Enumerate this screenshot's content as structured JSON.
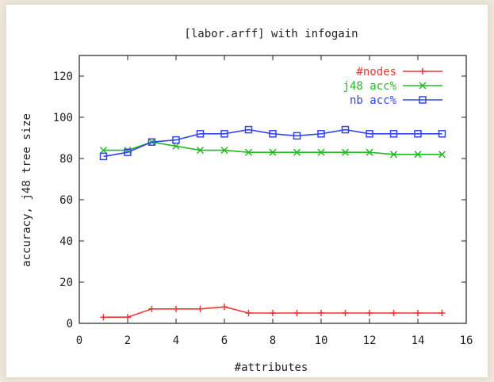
{
  "chart_data": {
    "type": "line",
    "title": "[labor.arff] with infogain",
    "xlabel": "#attributes",
    "ylabel": "accuracy, j48 tree size",
    "xlim": [
      0,
      16
    ],
    "ylim": [
      0,
      130
    ],
    "xticks": [
      0,
      2,
      4,
      6,
      8,
      10,
      12,
      14,
      16
    ],
    "yticks": [
      0,
      20,
      40,
      60,
      80,
      100,
      120
    ],
    "legend_position": "top-right",
    "x": [
      1,
      2,
      3,
      4,
      5,
      6,
      7,
      8,
      9,
      10,
      11,
      12,
      13,
      14,
      15
    ],
    "series": [
      {
        "name": "#nodes",
        "color": "#ee3333",
        "marker": "plus",
        "values": [
          3,
          3,
          7,
          7,
          7,
          8,
          5,
          5,
          5,
          5,
          5,
          5,
          5,
          5,
          5
        ]
      },
      {
        "name": "j48 acc%",
        "color": "#22bb22",
        "marker": "x",
        "values": [
          84,
          84,
          88,
          86,
          84,
          84,
          83,
          83,
          83,
          83,
          83,
          83,
          82,
          82,
          82
        ]
      },
      {
        "name": "nb acc%",
        "color": "#3344ee",
        "marker": "square",
        "values": [
          81,
          83,
          88,
          89,
          92,
          92,
          94,
          92,
          91,
          92,
          94,
          92,
          92,
          92,
          92
        ]
      }
    ]
  }
}
